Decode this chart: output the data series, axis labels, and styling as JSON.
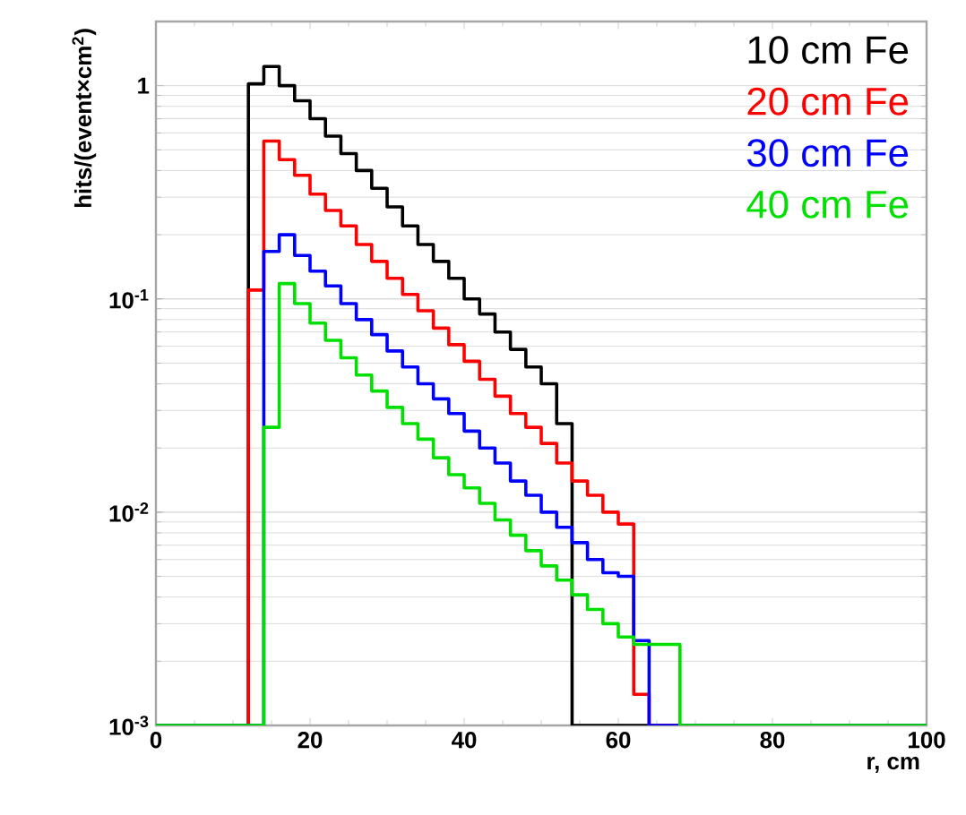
{
  "chart_data": {
    "type": "histogram",
    "xlabel": "r, cm",
    "ylabel": "**hits/(event×cm$^{2}$)**",
    "bins": [
      0,
      2,
      4,
      6,
      8,
      10,
      12,
      14,
      16,
      18,
      20,
      22,
      24,
      26,
      28,
      30,
      32,
      34,
      36,
      38,
      40,
      42,
      44,
      46,
      48,
      50,
      52,
      54,
      56,
      58,
      60,
      62,
      64,
      66,
      68,
      70,
      72,
      74,
      76,
      78,
      80,
      82,
      84,
      86,
      88,
      90,
      92,
      94,
      96,
      98,
      100
    ],
    "series": [
      {
        "name": "10 cm Fe",
        "color": "#000000",
        "values": [
          0.001,
          0.001,
          0.001,
          0.001,
          0.001,
          0.001,
          1.02,
          1.23,
          1.0,
          0.85,
          0.7,
          0.58,
          0.48,
          0.4,
          0.33,
          0.27,
          0.22,
          0.18,
          0.15,
          0.125,
          0.1,
          0.085,
          0.07,
          0.058,
          0.048,
          0.04,
          0.026,
          0.001,
          0.001,
          0.001,
          0.001,
          0.001,
          0.001,
          0.001,
          0.001,
          0.001,
          0.001,
          0.001,
          0.001,
          0.001,
          0.001,
          0.001,
          0.001,
          0.001,
          0.001,
          0.001,
          0.001,
          0.001,
          0.001,
          0.001
        ]
      },
      {
        "name": "20 cm Fe",
        "color": "#ff0000",
        "values": [
          0.001,
          0.001,
          0.001,
          0.001,
          0.001,
          0.001,
          0.11,
          0.55,
          0.45,
          0.38,
          0.31,
          0.26,
          0.22,
          0.18,
          0.15,
          0.125,
          0.105,
          0.088,
          0.073,
          0.061,
          0.051,
          0.042,
          0.035,
          0.029,
          0.025,
          0.021,
          0.017,
          0.014,
          0.012,
          0.01,
          0.0088,
          0.0014,
          0.001,
          0.001,
          0.001,
          0.001,
          0.001,
          0.001,
          0.001,
          0.001,
          0.001,
          0.001,
          0.001,
          0.001,
          0.001,
          0.001,
          0.001,
          0.001,
          0.001,
          0.001
        ]
      },
      {
        "name": "30 cm Fe",
        "color": "#0000ff",
        "values": [
          0.001,
          0.001,
          0.001,
          0.001,
          0.001,
          0.001,
          0.001,
          0.167,
          0.2,
          0.16,
          0.135,
          0.115,
          0.095,
          0.08,
          0.068,
          0.057,
          0.048,
          0.04,
          0.034,
          0.029,
          0.024,
          0.02,
          0.017,
          0.014,
          0.012,
          0.01,
          0.0085,
          0.0072,
          0.006,
          0.0052,
          0.005,
          0.0025,
          0.001,
          0.001,
          0.001,
          0.001,
          0.001,
          0.001,
          0.001,
          0.001,
          0.001,
          0.001,
          0.001,
          0.001,
          0.001,
          0.001,
          0.001,
          0.001,
          0.001,
          0.001
        ]
      },
      {
        "name": "40 cm Fe",
        "color": "#00e000",
        "values": [
          0.001,
          0.001,
          0.001,
          0.001,
          0.001,
          0.001,
          0.001,
          0.025,
          0.118,
          0.095,
          0.077,
          0.064,
          0.053,
          0.044,
          0.037,
          0.031,
          0.026,
          0.022,
          0.018,
          0.015,
          0.013,
          0.011,
          0.0092,
          0.0078,
          0.0066,
          0.0056,
          0.0048,
          0.0041,
          0.0035,
          0.003,
          0.0026,
          0.0024,
          0.0024,
          0.0024,
          0.001,
          0.001,
          0.001,
          0.001,
          0.001,
          0.001,
          0.001,
          0.001,
          0.001,
          0.001,
          0.001,
          0.001,
          0.001,
          0.001,
          0.001,
          0.001
        ]
      }
    ],
    "xlim": [
      0,
      100
    ],
    "ylim": [
      0.001,
      2
    ],
    "xticks": [
      0,
      20,
      40,
      60,
      80,
      100
    ],
    "yticks": [
      {
        "value": 0.001,
        "label": "10$^{-3}$"
      },
      {
        "value": 0.01,
        "label": "10$^{-2}$"
      },
      {
        "value": 0.1,
        "label": "10$^{-1}$"
      },
      1
    ],
    "log": "y",
    "grid": "y",
    "legend": "top right"
  }
}
